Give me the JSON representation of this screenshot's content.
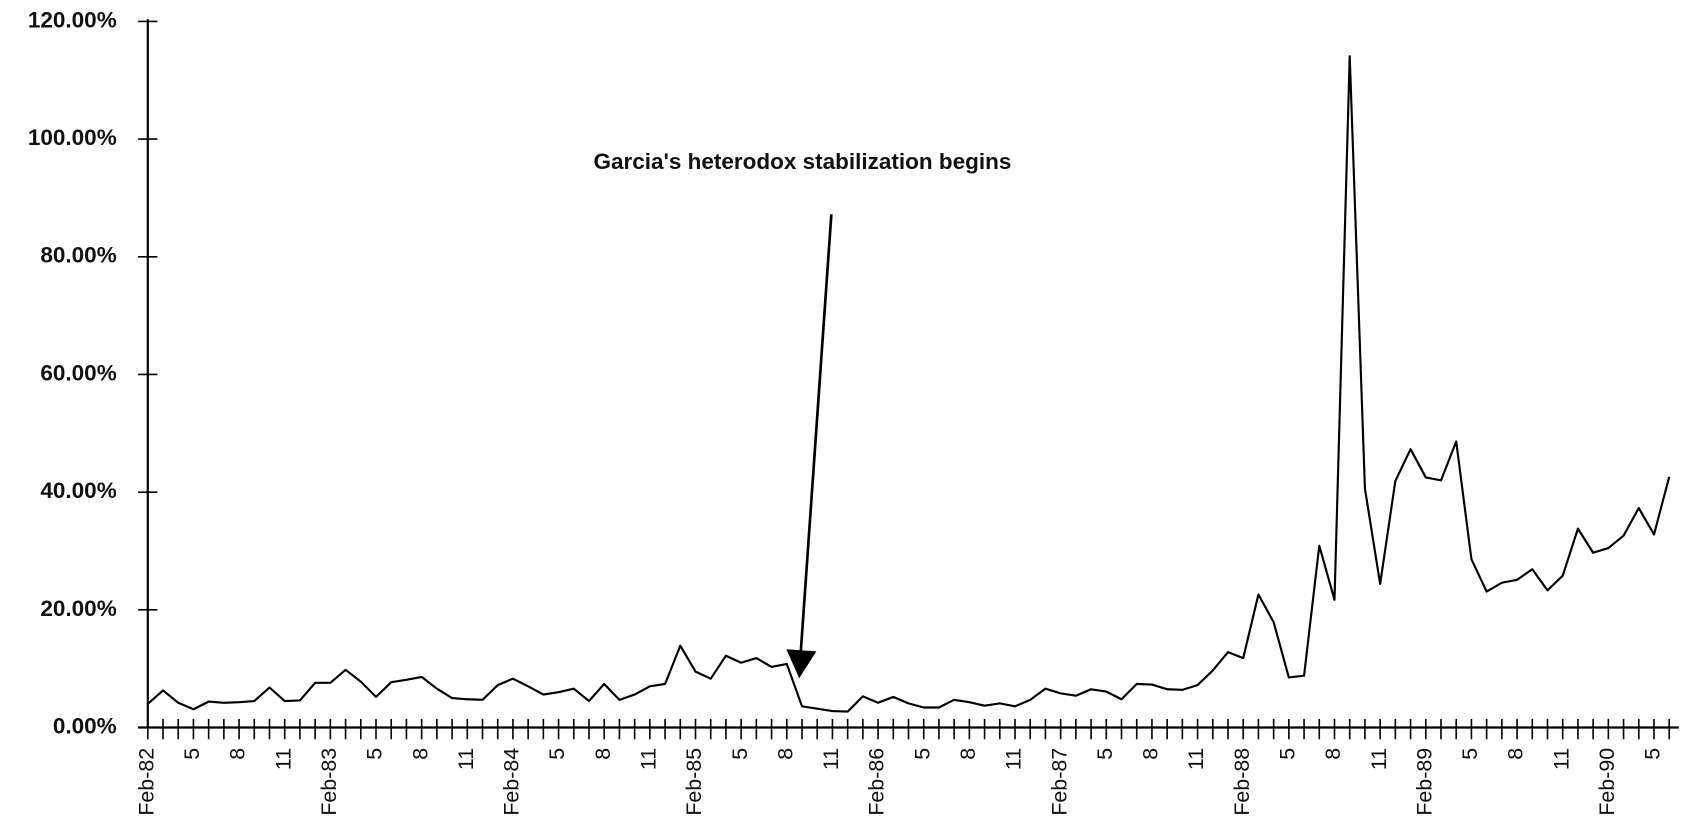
{
  "chart_data": {
    "type": "line",
    "annotation": "Garcia's heterodox stabilization begins",
    "categories": [
      "Feb-82",
      null,
      null,
      "5",
      null,
      null,
      "8",
      null,
      null,
      "11",
      null,
      null,
      "Feb-83",
      null,
      null,
      "5",
      null,
      null,
      "8",
      null,
      null,
      "11",
      null,
      null,
      "Feb-84",
      null,
      null,
      "5",
      null,
      null,
      "8",
      null,
      null,
      "11",
      null,
      null,
      "Feb-85",
      null,
      null,
      "5",
      null,
      null,
      "8",
      null,
      null,
      "11",
      null,
      null,
      "Feb-86",
      null,
      null,
      "5",
      null,
      null,
      "8",
      null,
      null,
      "11",
      null,
      null,
      "Feb-87",
      null,
      null,
      "5",
      null,
      null,
      "8",
      null,
      null,
      "11",
      null,
      null,
      "Feb-88",
      null,
      null,
      "5",
      null,
      null,
      "8",
      null,
      null,
      "11",
      null,
      null,
      "Feb-89",
      null,
      null,
      "5",
      null,
      null,
      "8",
      null,
      null,
      "11",
      null,
      null,
      "Feb-90",
      null,
      null,
      "5",
      null
    ],
    "values": [
      4,
      6.3,
      4.2,
      3.1,
      4.4,
      4.2,
      4.3,
      4.5,
      6.8,
      4.5,
      4.6,
      7.6,
      7.6,
      9.8,
      7.8,
      5.2,
      7.7,
      8.1,
      8.6,
      6.6,
      5,
      4.8,
      4.7,
      7.2,
      8.3,
      7,
      5.6,
      6,
      6.6,
      4.5,
      7.4,
      4.7,
      5.6,
      7,
      7.4,
      13.9,
      9.5,
      8.3,
      12.2,
      11,
      11.8,
      10.3,
      10.8,
      3.6,
      3.2,
      2.8,
      2.7,
      5.3,
      4.2,
      5.2,
      4.1,
      3.4,
      3.4,
      4.7,
      4.3,
      3.7,
      4.1,
      3.6,
      4.7,
      6.6,
      5.8,
      5.4,
      6.5,
      6.1,
      4.8,
      7.4,
      7.3,
      6.5,
      6.4,
      7.2,
      9.7,
      12.8,
      11.8,
      22.6,
      17.9,
      8.5,
      8.8,
      30.9,
      21.7,
      114.1,
      40.6,
      24.4,
      41.9,
      47.3,
      42.5,
      42,
      48.6,
      28.6,
      23.1,
      24.6,
      25.1,
      26.9,
      23.3,
      25.8,
      33.8,
      29.7,
      30.5,
      32.6,
      37.3,
      32.8,
      42.6
    ],
    "color": "#000000",
    "ylim": [
      0,
      120
    ],
    "yticks": [
      {
        "value": 0,
        "label": "0.00%"
      },
      {
        "value": 20,
        "label": "20.00%"
      },
      {
        "value": 40,
        "label": "40.00%"
      },
      {
        "value": 60,
        "label": "60.00%"
      },
      {
        "value": 80,
        "label": "80.00%"
      },
      {
        "value": 100,
        "label": "100.00%"
      },
      {
        "value": 120,
        "label": "120.00%"
      }
    ],
    "grid": false
  }
}
